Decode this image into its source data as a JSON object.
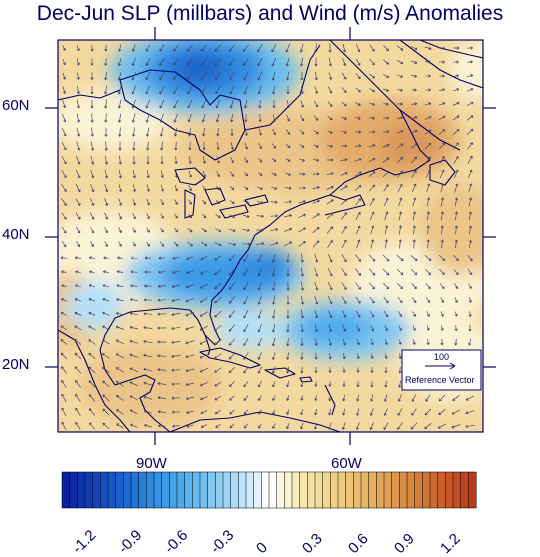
{
  "title": "Dec-Jun SLP (millbars) and Wind (m/s) Anomalies",
  "map": {
    "lat_labels": [
      "60N",
      "40N",
      "20N"
    ],
    "lon_labels": [
      "90W",
      "60W"
    ],
    "reference_vector": {
      "value": "100",
      "label": "Reference Vector"
    },
    "colors": {
      "frame": "#000066",
      "coastline": "#000066",
      "vector": "#444466"
    }
  },
  "colorbar": {
    "labels": [
      "-1.2",
      "-0.9",
      "-0.6",
      "-0.3",
      "0",
      "0.3",
      "0.6",
      "0.9",
      "1.2"
    ],
    "range": [
      -1.35,
      1.35
    ],
    "step": 0.05,
    "colors": [
      "#081d9a",
      "#0f3fb3",
      "#1a63cc",
      "#2e8ae0",
      "#4aa9eb",
      "#7fc6f2",
      "#b5e0f8",
      "#ffffff",
      "#f7ebb8",
      "#f1d58c",
      "#e9bd6c",
      "#e0a052",
      "#d47f3c",
      "#c75a28",
      "#b8331a"
    ]
  }
}
